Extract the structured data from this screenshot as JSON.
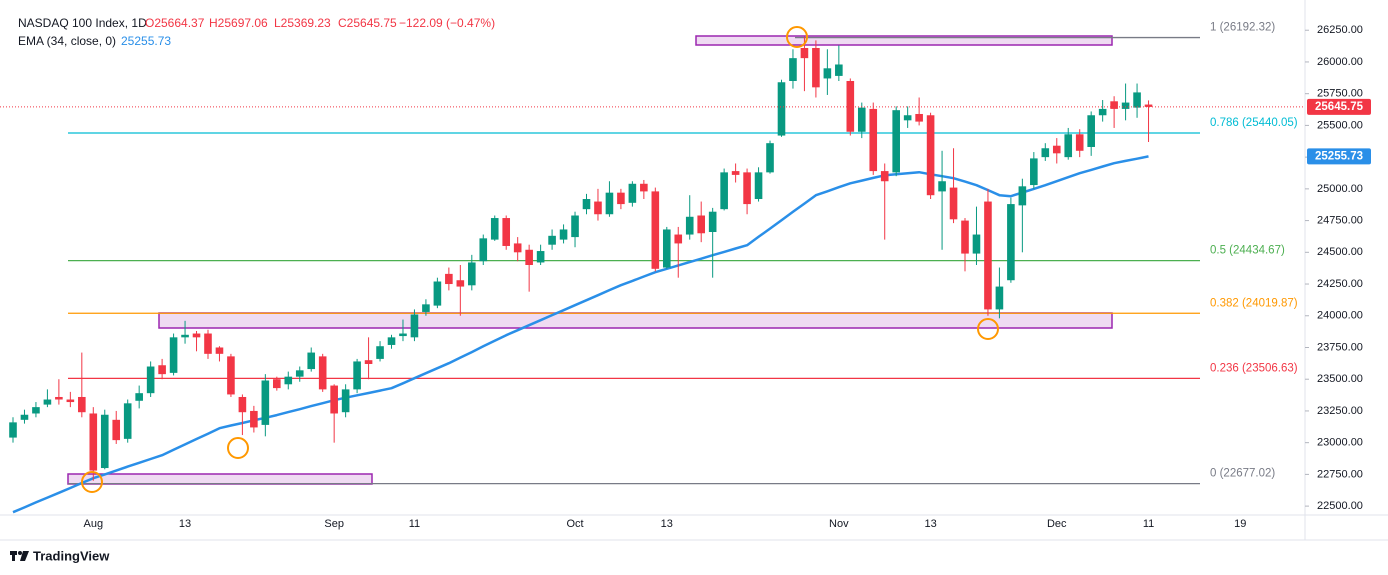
{
  "chart_data": {
    "type": "candlestick",
    "title": "NASDAQ 100 Index, 1D",
    "ohlc_text": [
      "O25664.37",
      "H25697.06",
      "L25369.23",
      "C25645.75"
    ],
    "change_text": "−122.09 (−0.47%)",
    "brand": "TradingView",
    "up_color": "#089981",
    "down_color": "#f23645",
    "grid": false,
    "categories": [
      null,
      null,
      null,
      null,
      null,
      null,
      null,
      "Aug",
      null,
      null,
      null,
      null,
      null,
      null,
      null,
      "13",
      null,
      null,
      null,
      null,
      null,
      null,
      null,
      null,
      null,
      null,
      null,
      null,
      "Sep",
      null,
      null,
      null,
      null,
      null,
      null,
      "11",
      null,
      null,
      null,
      null,
      null,
      null,
      null,
      null,
      null,
      null,
      null,
      null,
      null,
      "Oct",
      null,
      null,
      null,
      null,
      null,
      null,
      null,
      "13",
      null,
      null,
      null,
      null,
      null,
      null,
      null,
      null,
      null,
      null,
      null,
      null,
      null,
      null,
      "Nov",
      null,
      null,
      null,
      null,
      null,
      null,
      null,
      "13",
      null,
      null,
      null,
      null,
      null,
      null,
      null,
      null,
      null,
      null,
      "Dec",
      null,
      null,
      null,
      null,
      null,
      null,
      null,
      "11",
      null,
      null,
      null,
      null,
      null,
      null,
      null,
      "19",
      null,
      null,
      null,
      null,
      null
    ],
    "open": [
      23040,
      23180,
      23230,
      23300,
      23360,
      23340,
      23360,
      23230,
      22800,
      23180,
      23030,
      23330,
      23390,
      23610,
      23550,
      23830,
      23860,
      23860,
      23750,
      23680,
      23360,
      23250,
      23140,
      23500,
      23460,
      23520,
      23580,
      23680,
      23450,
      23240,
      23420,
      23650,
      23660,
      23770,
      23840,
      23830,
      24030,
      24080,
      24330,
      24280,
      24240,
      24430,
      24600,
      24770,
      24570,
      24520,
      24420,
      24560,
      24600,
      24620,
      24840,
      24900,
      24800,
      24970,
      24890,
      25040,
      24980,
      24380,
      24640,
      24640,
      24790,
      24660,
      24840,
      25140,
      25130,
      24920,
      25130,
      25420,
      25850,
      26110,
      26110,
      25870,
      25890,
      25850,
      25450,
      25630,
      25140,
      25130,
      25540,
      25590,
      25580,
      24980,
      25010,
      24750,
      24490,
      24900,
      24050,
      24280,
      24870,
      25030,
      25250,
      25340,
      25250,
      25430,
      25330,
      25580,
      25690,
      25630,
      25640,
      25664.37,
      null,
      null,
      null,
      null,
      null,
      null,
      null,
      null,
      null,
      null,
      null,
      null,
      null
    ],
    "high": [
      23200,
      23260,
      23320,
      23420,
      23500,
      23400,
      23710,
      23280,
      23260,
      23250,
      23340,
      23450,
      23640,
      23660,
      23860,
      23960,
      23880,
      23890,
      23760,
      23700,
      23380,
      23290,
      23540,
      23520,
      23560,
      23600,
      23750,
      23700,
      23460,
      23460,
      23660,
      23830,
      23800,
      23850,
      23970,
      24050,
      24130,
      24300,
      24380,
      24400,
      24480,
      24640,
      24790,
      24790,
      24620,
      24560,
      24560,
      24680,
      24720,
      24820,
      24960,
      25000,
      25060,
      25000,
      25060,
      25070,
      25010,
      24700,
      24700,
      24950,
      24900,
      24850,
      25160,
      25200,
      25160,
      25170,
      25380,
      25860,
      26100,
      26200,
      26170,
      26100,
      26130,
      25870,
      25680,
      25680,
      25200,
      25650,
      25650,
      25720,
      25600,
      25300,
      25320,
      24770,
      24860,
      25000,
      24380,
      24930,
      25080,
      25290,
      25360,
      25400,
      25480,
      25470,
      25610,
      25700,
      25730,
      25830,
      25830,
      25697.06,
      null,
      null,
      null,
      null,
      null,
      null,
      null,
      null,
      null,
      null,
      null,
      null,
      null
    ],
    "low": [
      23000,
      23150,
      23200,
      23280,
      23300,
      23280,
      23200,
      22700,
      22790,
      22990,
      23000,
      23270,
      23360,
      23500,
      23530,
      23780,
      23720,
      23660,
      23640,
      23360,
      23060,
      23080,
      23050,
      23410,
      23420,
      23480,
      23560,
      23400,
      23000,
      23200,
      23390,
      23500,
      23640,
      23740,
      23800,
      23800,
      24000,
      24060,
      24200,
      24000,
      24200,
      24400,
      24590,
      24520,
      24430,
      24190,
      24400,
      24520,
      24570,
      24540,
      24800,
      24750,
      24780,
      24840,
      24860,
      24920,
      24350,
      24370,
      24300,
      24600,
      24580,
      24300,
      24830,
      25050,
      24800,
      24900,
      25120,
      25410,
      25790,
      25770,
      25720,
      25740,
      25850,
      25420,
      25400,
      25110,
      24600,
      25100,
      25480,
      25500,
      24920,
      24520,
      24730,
      24350,
      24400,
      24000,
      23980,
      24260,
      24500,
      25000,
      25220,
      25200,
      25230,
      25250,
      25260,
      25530,
      25480,
      25540,
      25560,
      25369.23,
      null,
      null,
      null,
      null,
      null,
      null,
      null,
      null,
      null,
      null,
      null,
      null,
      null
    ],
    "close": [
      23160,
      23220,
      23280,
      23340,
      23340,
      23320,
      23240,
      22780,
      23220,
      23020,
      23310,
      23390,
      23600,
      23540,
      23830,
      23850,
      23830,
      23700,
      23700,
      23380,
      23240,
      23120,
      23490,
      23430,
      23520,
      23570,
      23710,
      23420,
      23230,
      23420,
      23640,
      23620,
      23760,
      23830,
      23860,
      24010,
      24090,
      24270,
      24250,
      24230,
      24420,
      24610,
      24770,
      24550,
      24500,
      24400,
      24510,
      24630,
      24680,
      24790,
      24920,
      24800,
      24970,
      24880,
      25040,
      24980,
      24370,
      24680,
      24570,
      24780,
      24650,
      24820,
      25130,
      25110,
      24880,
      25130,
      25360,
      25840,
      26030,
      26030,
      25800,
      25950,
      25980,
      25450,
      25640,
      25140,
      25060,
      25620,
      25580,
      25530,
      24950,
      25060,
      24760,
      24490,
      24640,
      24050,
      24230,
      24880,
      25020,
      25240,
      25320,
      25280,
      25430,
      25300,
      25580,
      25630,
      25630,
      25680,
      25760,
      25645.75,
      null,
      null,
      null,
      null,
      null,
      null,
      null,
      null,
      null,
      null,
      null,
      null,
      null
    ],
    "overlays": [
      {
        "name": "EMA (34, close, 0)",
        "color": "#2a8fe8",
        "values": [
          22452,
          22490,
          22529,
          22567,
          22605,
          22643,
          22682,
          22720,
          22750,
          22780,
          22811,
          22841,
          22871,
          22901,
          22944,
          22986,
          23029,
          23071,
          23114,
          23135,
          23155,
          23176,
          23196,
          23217,
          23241,
          23264,
          23288,
          23311,
          23335,
          23354,
          23373,
          23391,
          23410,
          23429,
          23468,
          23508,
          23547,
          23587,
          23626,
          23670,
          23714,
          23759,
          23803,
          23847,
          23886,
          23926,
          23965,
          24005,
          24044,
          24083,
          24123,
          24162,
          24202,
          24241,
          24275,
          24309,
          24343,
          24370,
          24397,
          24423,
          24450,
          24477,
          24503,
          24530,
          24556,
          24622,
          24687,
          24753,
          24819,
          24884,
          24950,
          24981,
          25013,
          25044,
          25065,
          25086,
          25107,
          25115,
          25123,
          25131,
          25115,
          25100,
          25084,
          25057,
          25029,
          24990,
          24950,
          24942,
          24971,
          25000,
          25029,
          25060,
          25092,
          25123,
          25149,
          25176,
          25202,
          25220,
          25238,
          25255.73,
          null,
          null,
          null,
          null,
          null,
          null,
          null,
          null,
          null,
          null,
          null,
          null,
          null
        ]
      }
    ],
    "fib_levels": [
      {
        "value": 26192.32,
        "label": "1 (26192.32)",
        "color": "#787b86"
      },
      {
        "value": 25440.05,
        "label": "0.786 (25440.05)",
        "color": "#00bcd4"
      },
      {
        "value": 24434.67,
        "label": "0.5 (24434.67)",
        "color": "#4caf50"
      },
      {
        "value": 24019.87,
        "label": "0.382 (24019.87)",
        "color": "#ff9800"
      },
      {
        "value": 23506.63,
        "label": "0.236 (23506.63)",
        "color": "#f23645"
      },
      {
        "value": 22677.02,
        "label": "0 (22677.02)",
        "color": "#787b86"
      }
    ],
    "ylim": [
      22430,
      26370
    ],
    "yticks": [
      {
        "value": 22500,
        "label": "22500.00"
      },
      {
        "value": 22750,
        "label": "22750.00"
      },
      {
        "value": 23000,
        "label": "23000.00"
      },
      {
        "value": 23250,
        "label": "23250.00"
      },
      {
        "value": 23500,
        "label": "23500.00"
      },
      {
        "value": 23750,
        "label": "23750.00"
      },
      {
        "value": 24000,
        "label": "24000.00"
      },
      {
        "value": 24250,
        "label": "24250.00"
      },
      {
        "value": 24500,
        "label": "24500.00"
      },
      {
        "value": 24750,
        "label": "24750.00"
      },
      {
        "value": 25000,
        "label": "25000.00"
      },
      {
        "value": 25250,
        "label": "25250.00"
      },
      {
        "value": 25500,
        "label": "25500.00"
      },
      {
        "value": 25750,
        "label": "25750.00"
      },
      {
        "value": 26000,
        "label": "26000.00"
      },
      {
        "value": 26250,
        "label": "26250.00"
      }
    ]
  }
}
